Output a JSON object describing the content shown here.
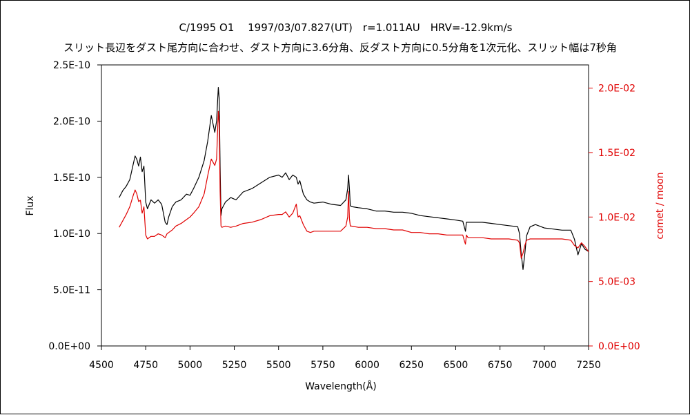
{
  "chart_data": {
    "type": "line",
    "title_line1": "C/1995 O1　 1997/03/07.827(UT)　r=1.011AU　HRV=-12.9km/s",
    "title_line2": "スリット長辺をダスト尾方向に合わせ、ダスト方向に3.6分角、反ダスト方向に0.5分角を1次元化、スリット幅は7秒角",
    "xlabel": "Wavelength(Å)",
    "ylabel_left": "Flux",
    "ylabel_right": "comet / moon",
    "xlim": [
      4500,
      7250
    ],
    "ylim_left": [
      0,
      2.5e-10
    ],
    "ylim_right": [
      0,
      0.0218
    ],
    "x_ticks": [
      "4500",
      "4750",
      "5000",
      "5250",
      "5500",
      "5750",
      "6000",
      "6250",
      "6500",
      "6750",
      "7000",
      "7250"
    ],
    "x_tick_values": [
      4500,
      4750,
      5000,
      5250,
      5500,
      5750,
      6000,
      6250,
      6500,
      6750,
      7000,
      7250
    ],
    "y_left_ticks": [
      "0.0E+00",
      "5.0E-11",
      "1.0E-10",
      "1.5E-10",
      "2.0E-10",
      "2.5E-10"
    ],
    "y_left_tick_values": [
      0,
      5e-11,
      1e-10,
      1.5e-10,
      2e-10,
      2.5e-10
    ],
    "y_right_ticks": [
      "0.0E+00",
      "5.0E-03",
      "1.0E-02",
      "1.5E-02",
      "2.0E-02"
    ],
    "y_right_tick_values": [
      0,
      0.005,
      0.01,
      0.015,
      0.02
    ],
    "colors": {
      "flux": "#000000",
      "ratio": "#e00000",
      "axis_right": "#e00000"
    },
    "series": [
      {
        "axis": "left",
        "color": "#000000",
        "x": [
          4600,
          4620,
          4640,
          4660,
          4680,
          4690,
          4700,
          4710,
          4720,
          4730,
          4740,
          4750,
          4760,
          4780,
          4800,
          4820,
          4840,
          4860,
          4870,
          4880,
          4900,
          4920,
          4950,
          4980,
          5000,
          5020,
          5050,
          5080,
          5100,
          5120,
          5140,
          5150,
          5160,
          5165,
          5170,
          5175,
          5180,
          5200,
          5230,
          5260,
          5300,
          5350,
          5400,
          5450,
          5500,
          5520,
          5540,
          5560,
          5580,
          5600,
          5610,
          5620,
          5640,
          5660,
          5680,
          5700,
          5750,
          5800,
          5850,
          5880,
          5890,
          5895,
          5900,
          5905,
          5910,
          5950,
          6000,
          6050,
          6100,
          6150,
          6200,
          6250,
          6300,
          6350,
          6400,
          6450,
          6500,
          6540,
          6550,
          6555,
          6560,
          6570,
          6600,
          6650,
          6700,
          6750,
          6800,
          6850,
          6860,
          6870,
          6880,
          6890,
          6900,
          6920,
          6950,
          7000,
          7050,
          7100,
          7150,
          7170,
          7190,
          7210,
          7230,
          7250
        ],
        "values": [
          1.32e-10,
          1.38e-10,
          1.42e-10,
          1.48e-10,
          1.62e-10,
          1.69e-10,
          1.66e-10,
          1.6e-10,
          1.68e-10,
          1.55e-10,
          1.6e-10,
          1.28e-10,
          1.22e-10,
          1.3e-10,
          1.27e-10,
          1.3e-10,
          1.26e-10,
          1.1e-10,
          1.08e-10,
          1.15e-10,
          1.24e-10,
          1.28e-10,
          1.3e-10,
          1.35e-10,
          1.34e-10,
          1.4e-10,
          1.5e-10,
          1.65e-10,
          1.82e-10,
          2.05e-10,
          1.9e-10,
          2e-10,
          2.3e-10,
          2.2e-10,
          1.6e-10,
          1.16e-10,
          1.22e-10,
          1.28e-10,
          1.32e-10,
          1.3e-10,
          1.37e-10,
          1.4e-10,
          1.45e-10,
          1.5e-10,
          1.52e-10,
          1.5e-10,
          1.54e-10,
          1.48e-10,
          1.52e-10,
          1.5e-10,
          1.44e-10,
          1.47e-10,
          1.35e-10,
          1.3e-10,
          1.28e-10,
          1.27e-10,
          1.28e-10,
          1.26e-10,
          1.25e-10,
          1.3e-10,
          1.4e-10,
          1.52e-10,
          1.4e-10,
          1.25e-10,
          1.24e-10,
          1.23e-10,
          1.22e-10,
          1.2e-10,
          1.2e-10,
          1.19e-10,
          1.19e-10,
          1.18e-10,
          1.16e-10,
          1.15e-10,
          1.14e-10,
          1.13e-10,
          1.12e-10,
          1.11e-10,
          1.05e-10,
          1.02e-10,
          1.1e-10,
          1.1e-10,
          1.1e-10,
          1.1e-10,
          1.09e-10,
          1.08e-10,
          1.07e-10,
          1.06e-10,
          1e-10,
          8.2e-11,
          6.8e-11,
          8.2e-11,
          9.8e-11,
          1.06e-10,
          1.08e-10,
          1.05e-10,
          1.04e-10,
          1.03e-10,
          1.03e-10,
          9.5e-11,
          8.1e-11,
          9.1e-11,
          8.6e-11,
          8.4e-11
        ]
      },
      {
        "axis": "right",
        "color": "#e00000",
        "x": [
          4600,
          4620,
          4640,
          4660,
          4680,
          4690,
          4700,
          4710,
          4720,
          4730,
          4740,
          4750,
          4760,
          4780,
          4800,
          4820,
          4840,
          4860,
          4870,
          4880,
          4900,
          4920,
          4950,
          4980,
          5000,
          5020,
          5050,
          5080,
          5100,
          5120,
          5140,
          5150,
          5160,
          5165,
          5170,
          5175,
          5180,
          5200,
          5230,
          5260,
          5300,
          5350,
          5400,
          5450,
          5500,
          5520,
          5540,
          5560,
          5580,
          5600,
          5610,
          5620,
          5640,
          5660,
          5680,
          5700,
          5750,
          5800,
          5850,
          5880,
          5890,
          5895,
          5900,
          5905,
          5910,
          5950,
          6000,
          6050,
          6100,
          6150,
          6200,
          6250,
          6300,
          6350,
          6400,
          6450,
          6500,
          6540,
          6550,
          6555,
          6560,
          6570,
          6600,
          6650,
          6700,
          6750,
          6800,
          6850,
          6860,
          6870,
          6880,
          6890,
          6900,
          6920,
          6950,
          7000,
          7050,
          7100,
          7150,
          7170,
          7190,
          7210,
          7230,
          7250
        ],
        "values": [
          0.0092,
          0.0097,
          0.0102,
          0.0108,
          0.0117,
          0.0121,
          0.0118,
          0.0112,
          0.0113,
          0.0103,
          0.0108,
          0.0086,
          0.0083,
          0.0085,
          0.0085,
          0.0087,
          0.0086,
          0.0084,
          0.0087,
          0.0088,
          0.009,
          0.0093,
          0.0095,
          0.0098,
          0.01,
          0.0103,
          0.0108,
          0.0118,
          0.0132,
          0.0145,
          0.014,
          0.0145,
          0.0182,
          0.0172,
          0.012,
          0.0093,
          0.0092,
          0.0093,
          0.0092,
          0.0093,
          0.0095,
          0.0096,
          0.0098,
          0.0101,
          0.0102,
          0.0102,
          0.0104,
          0.01,
          0.0103,
          0.011,
          0.01,
          0.0101,
          0.0094,
          0.0089,
          0.0088,
          0.0089,
          0.0089,
          0.0089,
          0.0089,
          0.0093,
          0.01,
          0.012,
          0.0099,
          0.0093,
          0.0093,
          0.0092,
          0.0092,
          0.0091,
          0.0091,
          0.009,
          0.009,
          0.0088,
          0.0088,
          0.0087,
          0.0087,
          0.0086,
          0.0086,
          0.0086,
          0.0081,
          0.0079,
          0.0086,
          0.0084,
          0.0084,
          0.0084,
          0.0083,
          0.0083,
          0.0083,
          0.0082,
          0.008,
          0.0068,
          0.0072,
          0.0078,
          0.0082,
          0.0083,
          0.0083,
          0.0083,
          0.0083,
          0.0083,
          0.0082,
          0.0078,
          0.0076,
          0.008,
          0.0077,
          0.0073
        ]
      }
    ]
  }
}
